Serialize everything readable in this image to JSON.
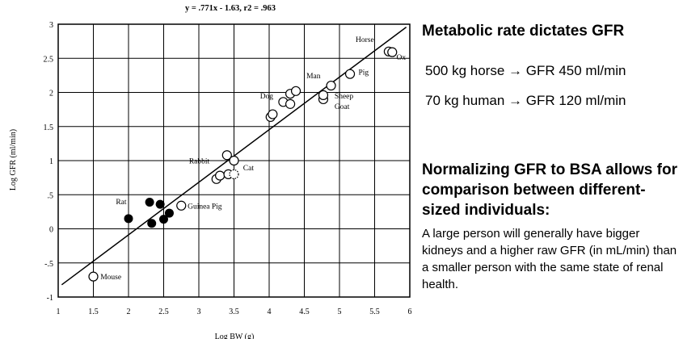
{
  "chart_data": {
    "type": "scatter",
    "title": "y = .771x - 1.63, r2 = .963",
    "xlabel": "Log BW (g)",
    "ylabel": "Log GFR (ml/min)",
    "xlim": [
      1,
      6
    ],
    "ylim": [
      -1,
      3
    ],
    "x_ticks": [
      "1",
      "1.5",
      "2",
      "2.5",
      "3",
      "3.5",
      "4",
      "4.5",
      "5",
      "5.5",
      "6"
    ],
    "x_tick_values": [
      1,
      1.5,
      2,
      2.5,
      3,
      3.5,
      4,
      4.5,
      5,
      5.5,
      6
    ],
    "y_ticks": [
      "3",
      "2.5",
      "2",
      "1.5",
      "1",
      ".5",
      "0",
      "-.5",
      "-1"
    ],
    "y_tick_values": [
      3,
      2.5,
      2,
      1.5,
      1,
      0.5,
      0,
      -0.5,
      -1
    ],
    "grid": true,
    "regression": {
      "slope": 0.771,
      "intercept": -1.63,
      "x_range": [
        1.05,
        5.95
      ]
    },
    "series": [
      {
        "marker": "filled-circle",
        "points": [
          {
            "x": 2.0,
            "y": 0.15
          },
          {
            "x": 2.3,
            "y": 0.39
          },
          {
            "x": 2.45,
            "y": 0.36
          },
          {
            "x": 2.33,
            "y": 0.08
          },
          {
            "x": 2.5,
            "y": 0.14
          },
          {
            "x": 2.58,
            "y": 0.23
          }
        ]
      },
      {
        "marker": "open-circle",
        "points": [
          {
            "x": 1.5,
            "y": -0.7
          },
          {
            "x": 2.75,
            "y": 0.34
          },
          {
            "x": 3.25,
            "y": 0.73
          },
          {
            "x": 3.3,
            "y": 0.78
          },
          {
            "x": 3.42,
            "y": 0.8
          },
          {
            "x": 3.4,
            "y": 1.08
          },
          {
            "x": 3.5,
            "y": 1.0
          },
          {
            "x": 4.02,
            "y": 1.64
          },
          {
            "x": 4.05,
            "y": 1.68
          },
          {
            "x": 4.2,
            "y": 1.86
          },
          {
            "x": 4.3,
            "y": 1.83
          },
          {
            "x": 4.3,
            "y": 1.98
          },
          {
            "x": 4.38,
            "y": 2.02
          },
          {
            "x": 4.77,
            "y": 1.9
          },
          {
            "x": 4.77,
            "y": 1.96
          },
          {
            "x": 4.88,
            "y": 2.1
          },
          {
            "x": 5.15,
            "y": 2.27
          },
          {
            "x": 5.7,
            "y": 2.6
          },
          {
            "x": 5.75,
            "y": 2.59
          }
        ]
      },
      {
        "marker": "dotted-circle",
        "points": [
          {
            "x": 3.5,
            "y": 0.8
          }
        ]
      }
    ],
    "annotations": [
      {
        "text": "Mouse",
        "x": 1.6,
        "y": -0.7,
        "anchor": "start"
      },
      {
        "text": "Rat",
        "x": 1.82,
        "y": 0.4,
        "anchor": "start"
      },
      {
        "text": "Guinea Pig",
        "x": 2.84,
        "y": 0.34,
        "anchor": "start"
      },
      {
        "text": "Rabbit",
        "x": 2.86,
        "y": 1.0,
        "anchor": "start"
      },
      {
        "text": "Cat",
        "x": 3.63,
        "y": 0.9,
        "anchor": "start"
      },
      {
        "text": "Dog",
        "x": 3.87,
        "y": 1.95,
        "anchor": "start"
      },
      {
        "text": "Man",
        "x": 4.53,
        "y": 2.25,
        "anchor": "start"
      },
      {
        "text": "Sheep",
        "x": 4.93,
        "y": 1.95,
        "anchor": "start"
      },
      {
        "text": "Goat",
        "x": 4.93,
        "y": 1.8,
        "anchor": "start"
      },
      {
        "text": "Pig",
        "x": 5.27,
        "y": 2.3,
        "anchor": "start"
      },
      {
        "text": "Horse",
        "x": 5.23,
        "y": 2.78,
        "anchor": "start"
      },
      {
        "text": "Ox",
        "x": 5.81,
        "y": 2.52,
        "anchor": "start"
      }
    ]
  },
  "panel": {
    "heading": "Metabolic rate dictates GFR",
    "fact1": "500 kg horse → GFR 450 ml/min",
    "fact2": "70 kg human →  GFR 120 ml/min",
    "subheading": "Normalizing GFR to BSA allows for comparison between different-sized individuals:",
    "body": "A large person will generally have bigger kidneys and a higher raw GFR (in mL/min) than a smaller person with the same state of renal health."
  }
}
